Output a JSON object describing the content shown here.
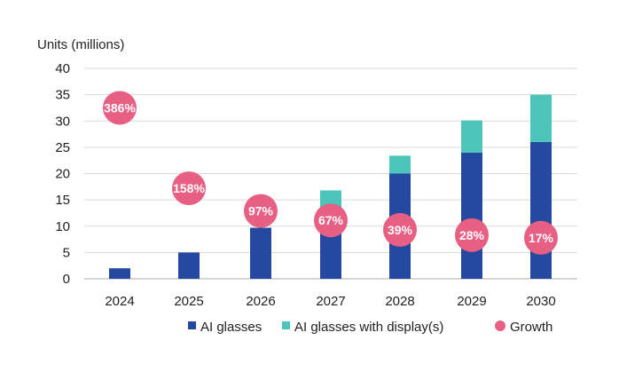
{
  "chart_data": {
    "type": "bar",
    "stacked": true,
    "categories": [
      "2024",
      "2025",
      "2026",
      "2027",
      "2028",
      "2029",
      "2030"
    ],
    "ylabel": "Units (millions)",
    "ylim": [
      0,
      40
    ],
    "yticks": [
      0,
      5,
      10,
      15,
      20,
      25,
      30,
      35,
      40
    ],
    "grid": true,
    "legend_position": "bottom",
    "series": [
      {
        "name": "AI glasses",
        "color": "#2549A1",
        "values": [
          2,
          5,
          9.7,
          12.2,
          20,
          24,
          26
        ]
      },
      {
        "name": "AI glasses with display(s)",
        "color": "#4CC4BA",
        "values": [
          0,
          0,
          0,
          4.6,
          3.4,
          6.1,
          9
        ]
      }
    ],
    "growth": {
      "name": "Growth",
      "color": "#E85F84",
      "labels": [
        "386%",
        "158%",
        "97%",
        "67%",
        "39%",
        "28%",
        "17%"
      ],
      "values_percent": [
        386,
        158,
        97,
        67,
        39,
        28,
        17
      ],
      "marker_y": [
        32.5,
        17.2,
        12.9,
        11.1,
        9.3,
        8.3,
        7.8
      ]
    }
  }
}
